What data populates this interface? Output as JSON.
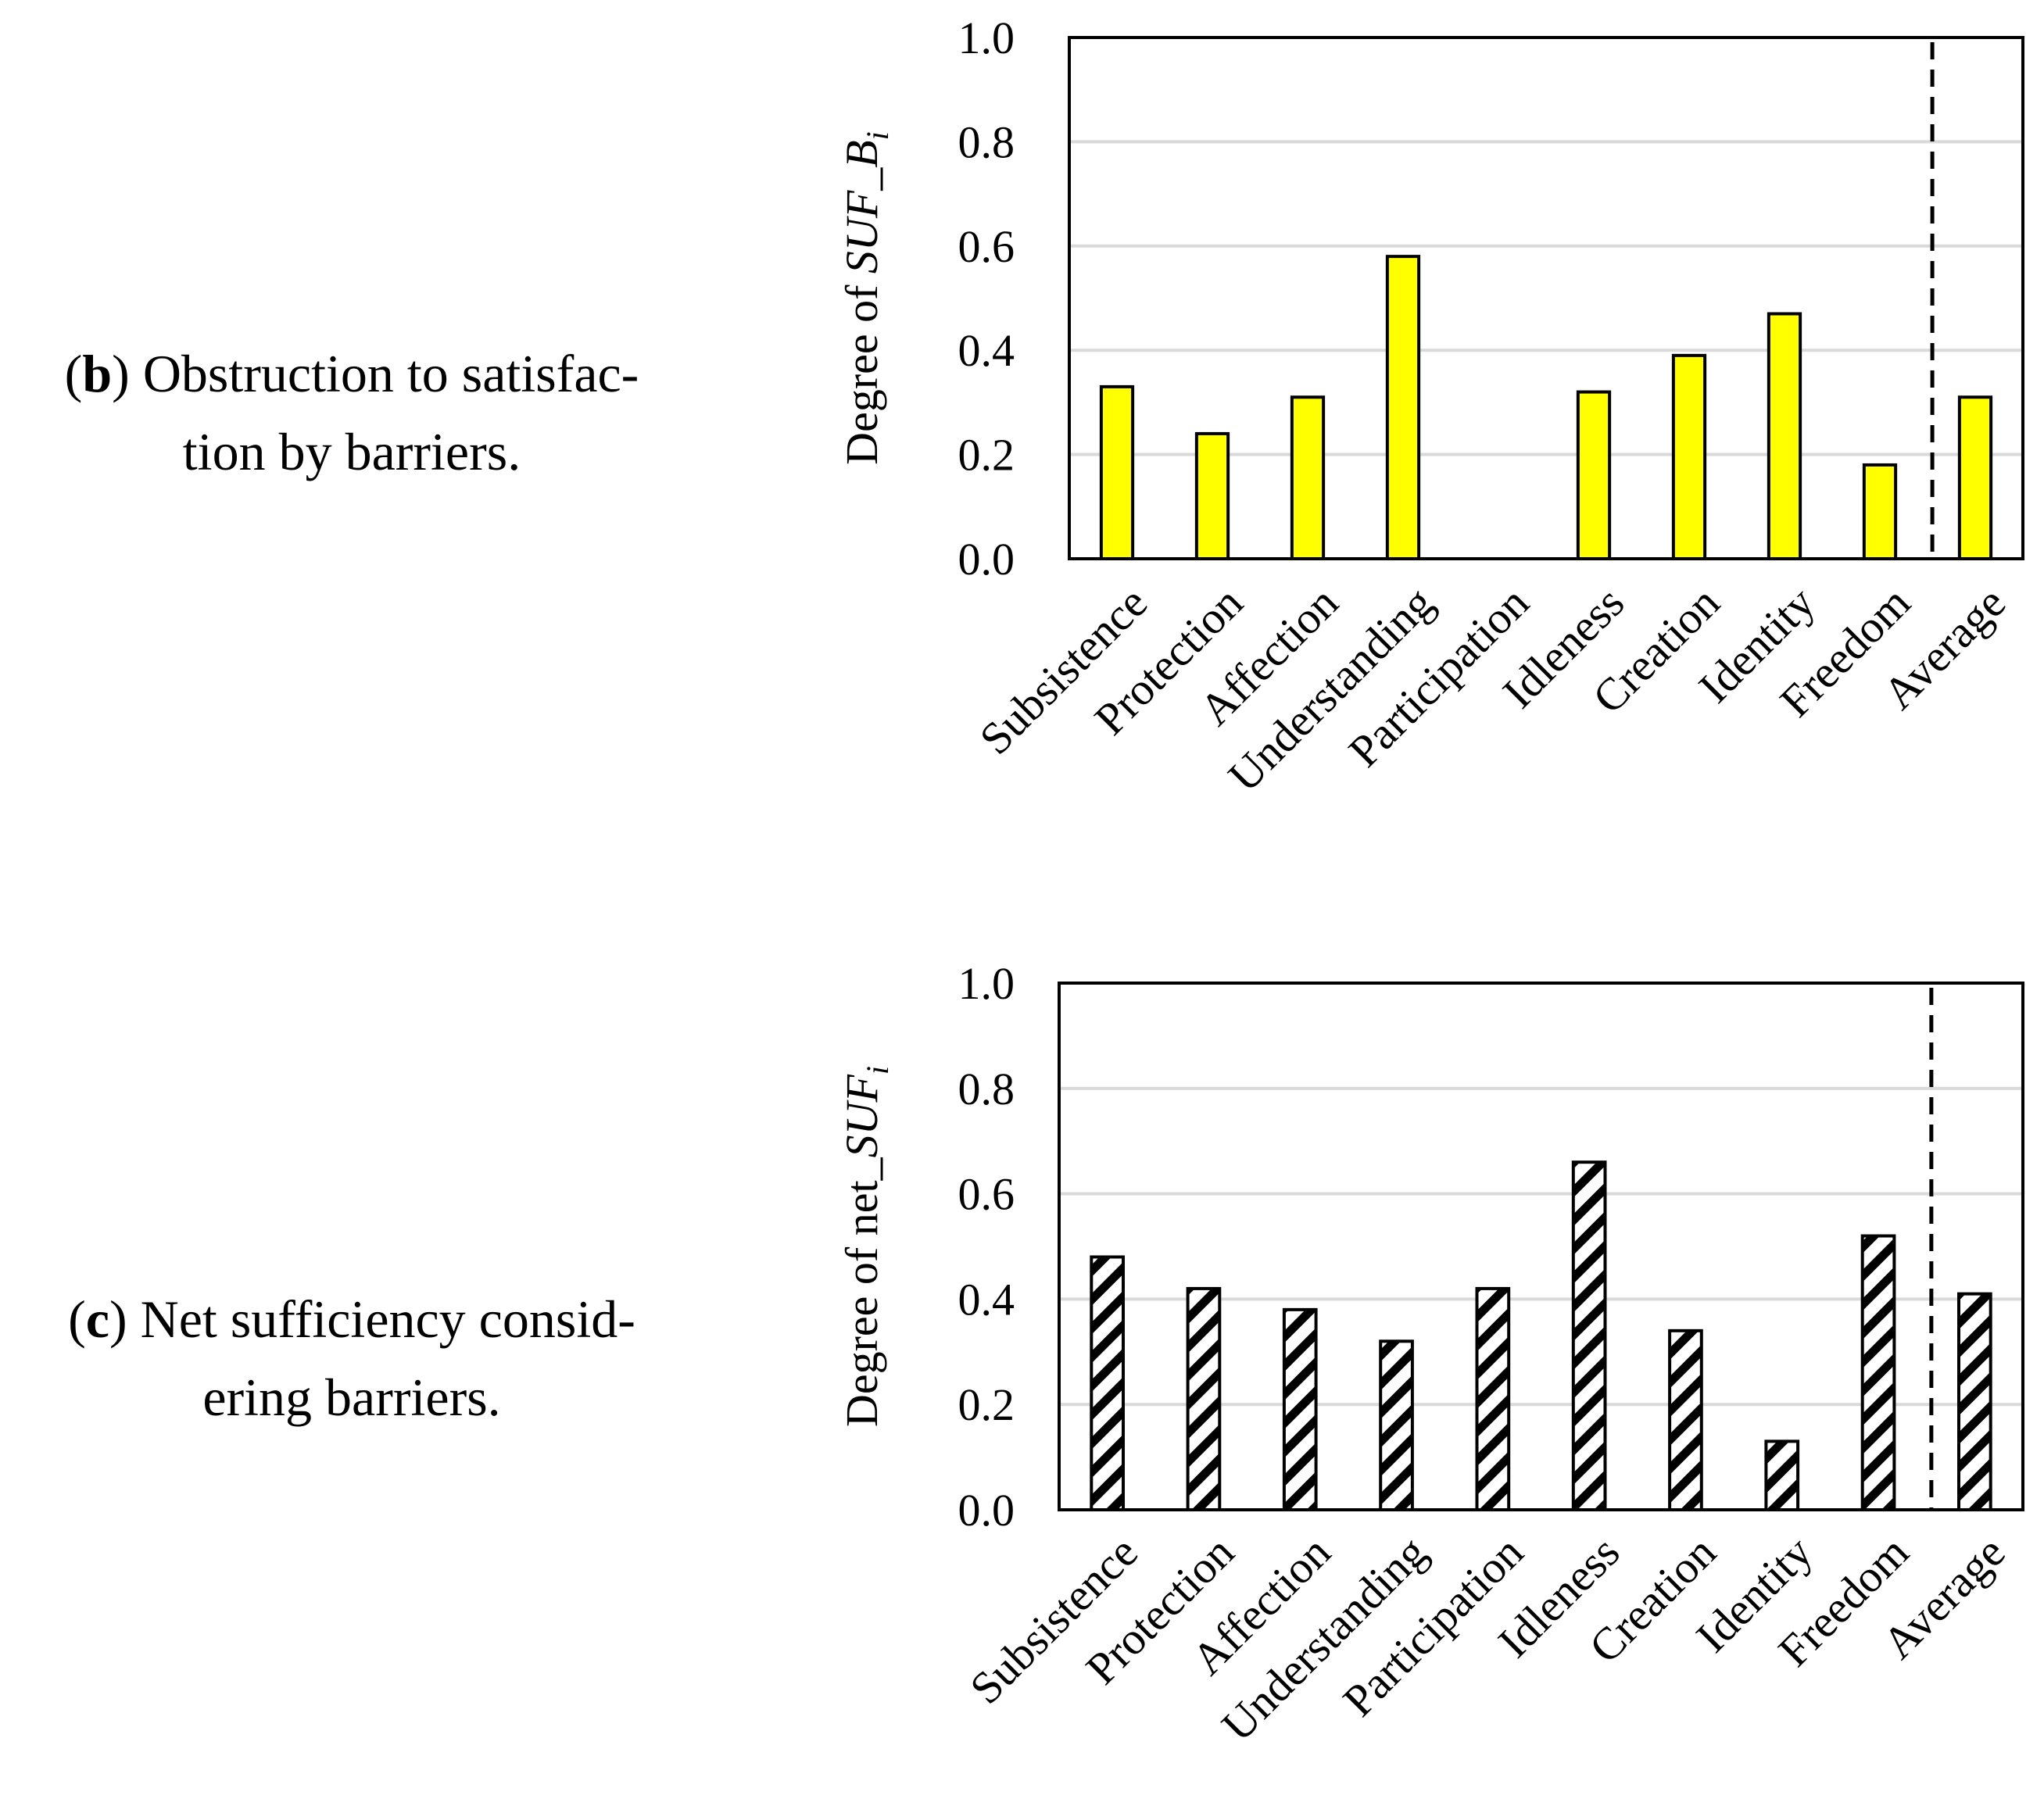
{
  "captions": [
    {
      "letter": "b",
      "open": "(",
      "close": ")",
      "line1_rest": " Obstruction to satisfac-",
      "line2": "tion by barriers."
    },
    {
      "letter": "c",
      "open": "(",
      "close": ")",
      "line1_rest": " Net sufficiency consid-",
      "line2": "ering barriers."
    }
  ],
  "colors": {
    "yellow": "#ffff00",
    "black": "#000000",
    "grid": "#d9d9d9"
  },
  "chart_data": [
    {
      "type": "bar",
      "ylabel_prefix": "Degree of ",
      "ylabel_var": "SUF_B",
      "ylabel_sub": "i",
      "ylim": [
        0,
        1.0
      ],
      "yticks": [
        0.0,
        0.2,
        0.4,
        0.6,
        0.8,
        1.0
      ],
      "ytick_labels": [
        "0.0",
        "0.2",
        "0.4",
        "0.6",
        "0.8",
        "1.0"
      ],
      "grid": true,
      "categories": [
        "Subsistence",
        "Protection",
        "Affection",
        "Understanding",
        "Participation",
        "Idleness",
        "Creation",
        "Identity",
        "Freedom",
        "Average"
      ],
      "values": [
        0.33,
        0.24,
        0.31,
        0.58,
        0.0,
        0.32,
        0.39,
        0.47,
        0.18,
        0.31
      ],
      "fill": "solid-yellow",
      "separator_before": "Average"
    },
    {
      "type": "bar",
      "ylabel_prefix": "Degree of net_",
      "ylabel_var": "SUF",
      "ylabel_sub": "i",
      "ylim": [
        0,
        1.0
      ],
      "yticks": [
        0.0,
        0.2,
        0.4,
        0.6,
        0.8,
        1.0
      ],
      "ytick_labels": [
        "0.0",
        "0.2",
        "0.4",
        "0.6",
        "0.8",
        "1.0"
      ],
      "grid": true,
      "categories": [
        "Subsistence",
        "Protection",
        "Affection",
        "Understanding",
        "Participation",
        "Idleness",
        "Creation",
        "Identity",
        "Freedom",
        "Average"
      ],
      "values": [
        0.48,
        0.42,
        0.38,
        0.32,
        0.42,
        0.66,
        0.34,
        0.13,
        0.52,
        0.41
      ],
      "fill": "diagonal-hatch",
      "separator_before": "Average"
    }
  ]
}
